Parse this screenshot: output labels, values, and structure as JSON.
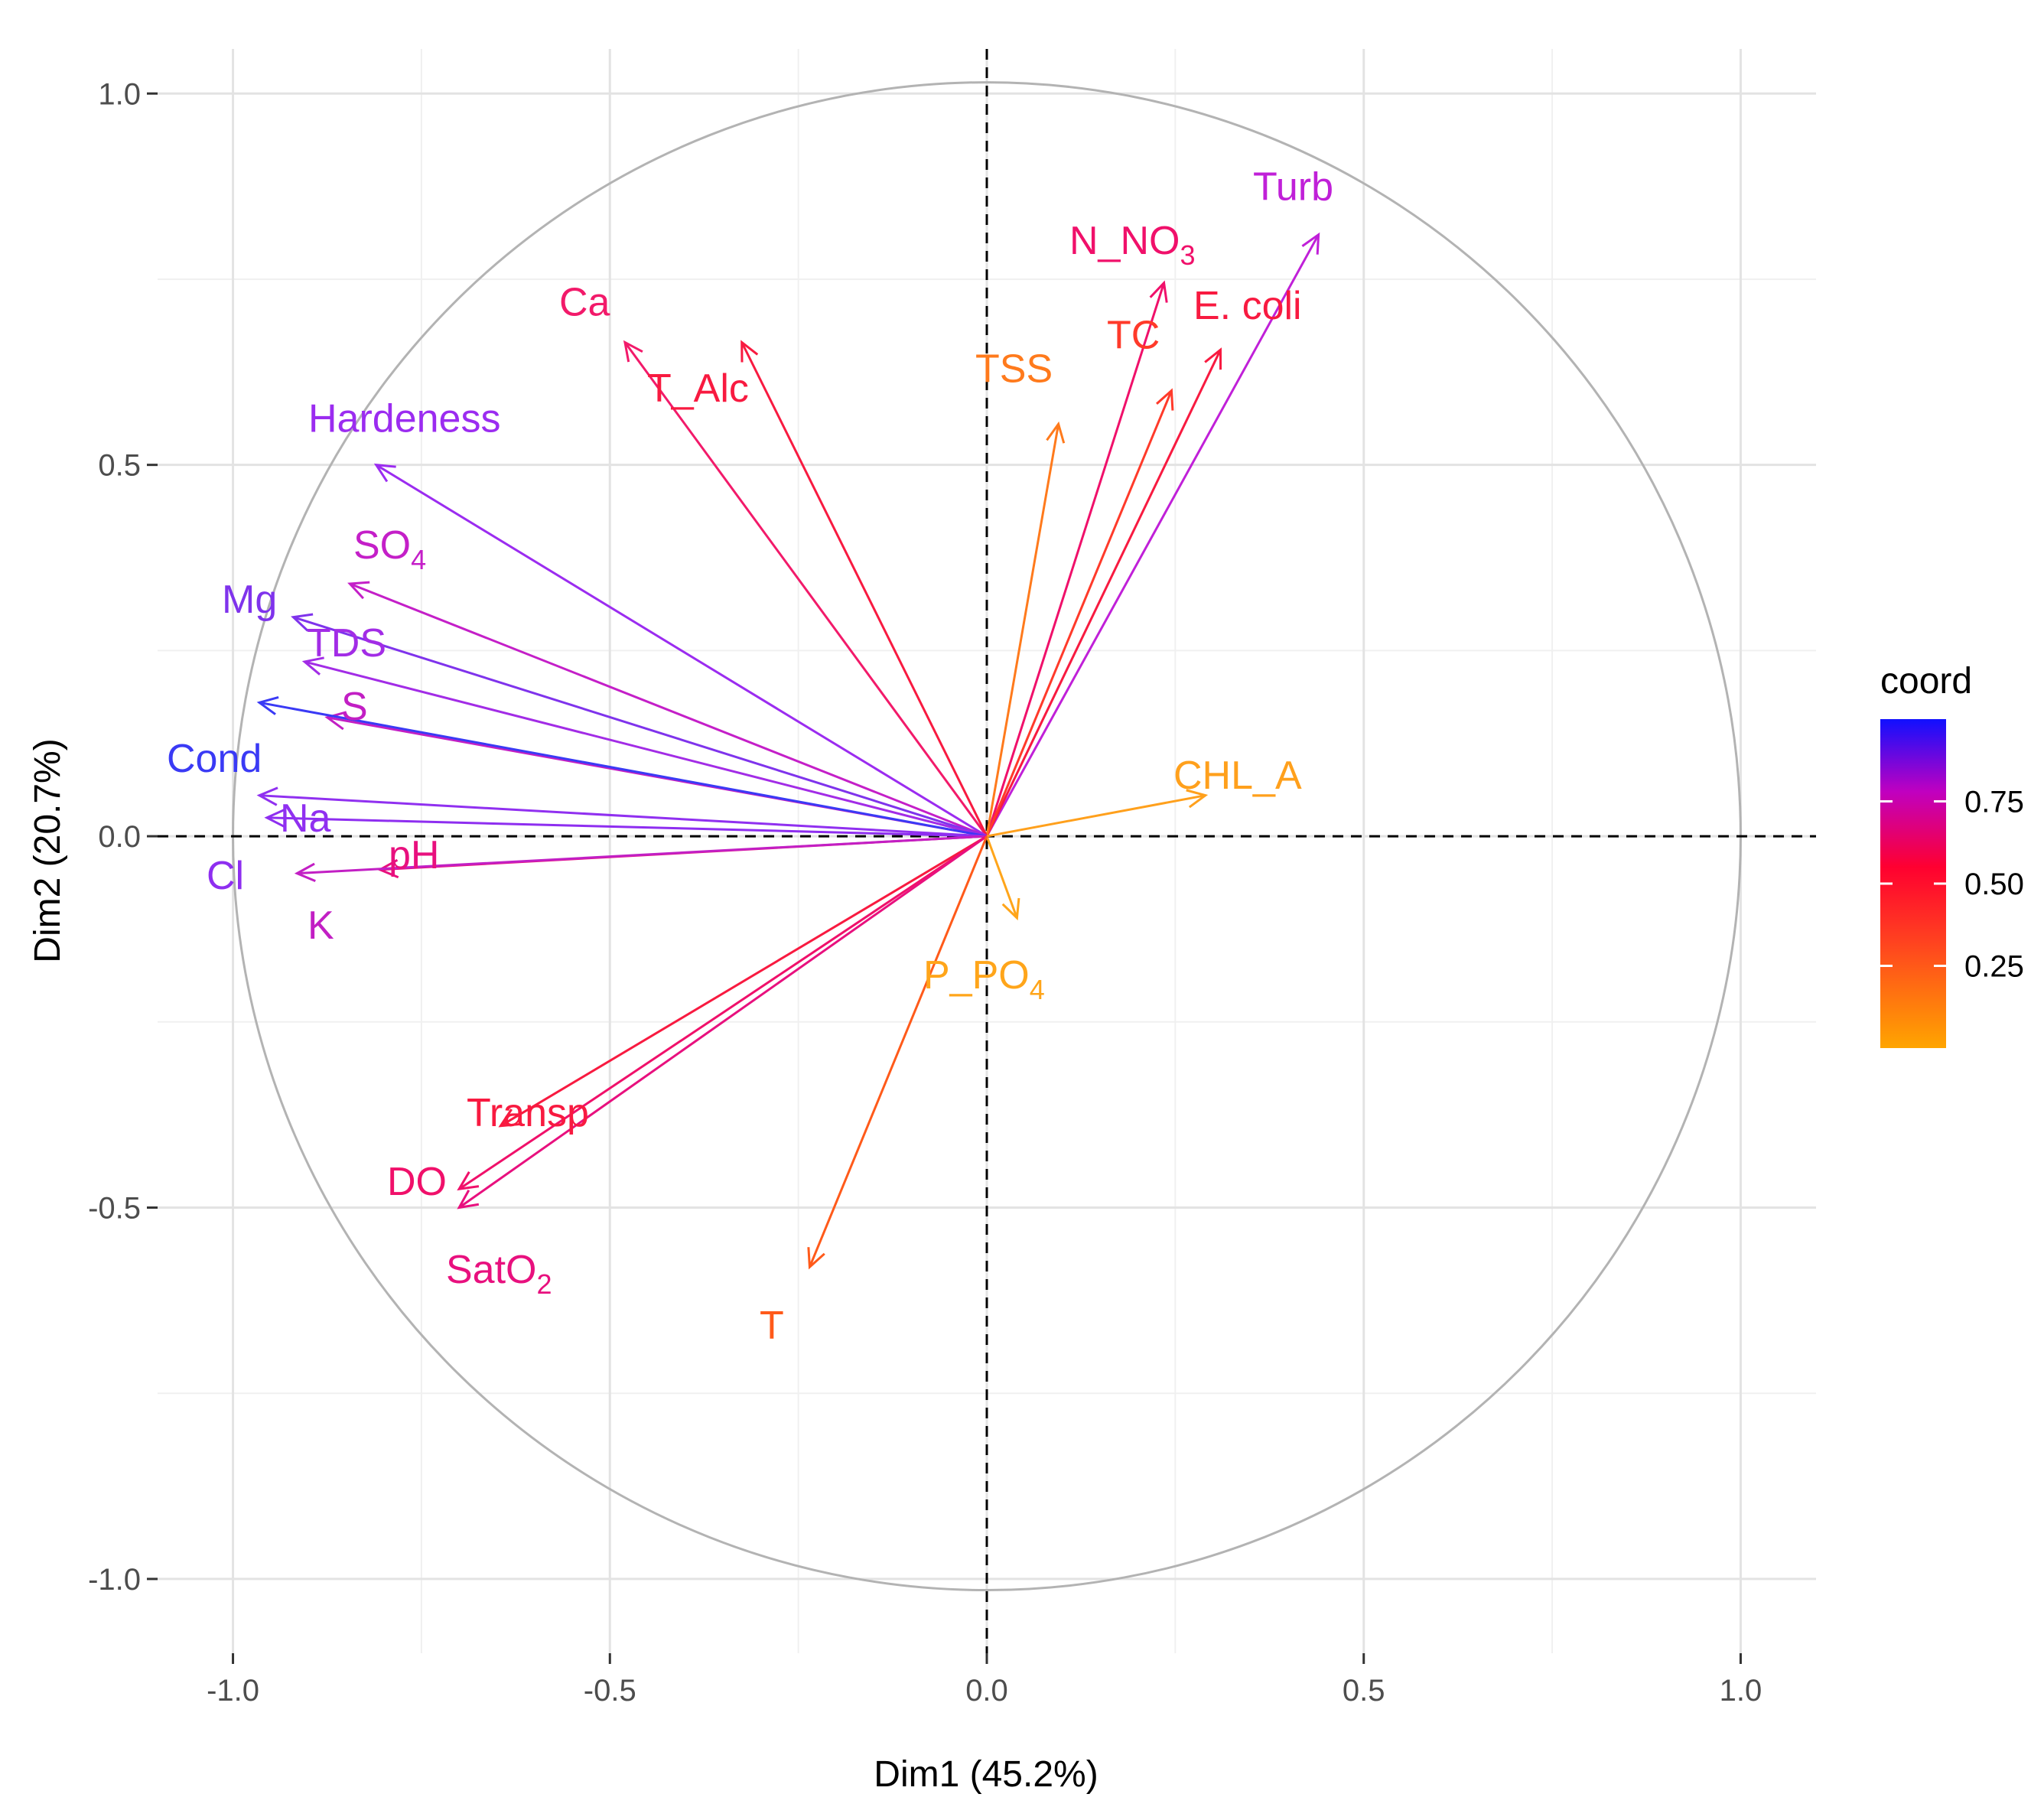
{
  "chart_data": {
    "type": "scatter",
    "subtype": "pca-variable-correlation-circle",
    "title": "",
    "xlabel": "Dim1 (45.2%)",
    "ylabel": "Dim2 (20.7%)",
    "xlim": [
      -1.1,
      1.1
    ],
    "ylim": [
      -1.1,
      1.06
    ],
    "x_ticks": [
      {
        "v": -1.0,
        "label": "-1.0"
      },
      {
        "v": -0.5,
        "label": "-0.5"
      },
      {
        "v": 0.0,
        "label": "0.0"
      },
      {
        "v": 0.5,
        "label": "0.5"
      },
      {
        "v": 1.0,
        "label": "1.0"
      }
    ],
    "y_ticks": [
      {
        "v": 1.0,
        "label": "1.0"
      },
      {
        "v": 0.5,
        "label": "0.5"
      },
      {
        "v": 0.0,
        "label": "0.0"
      },
      {
        "v": -0.5,
        "label": "-0.5"
      },
      {
        "v": -1.0,
        "label": "-1.0"
      }
    ],
    "grid": true,
    "unit_circle": true,
    "reference_lines": [
      0,
      0
    ],
    "legend": {
      "title": "coord",
      "placement": "right",
      "gradient": [
        "#FFA500",
        "#FF0000",
        "#C000C0",
        "#0000FF"
      ],
      "range": [
        0.0,
        1.0
      ],
      "ticks": [
        {
          "v": 0.25,
          "label": "0.25"
        },
        {
          "v": 0.5,
          "label": "0.50"
        },
        {
          "v": 0.75,
          "label": "0.75"
        }
      ]
    },
    "variables": [
      {
        "name": "Turb",
        "sub": "",
        "x": 0.44,
        "y": 0.81,
        "color": "#C020D8"
      },
      {
        "name": "N_NO",
        "sub": "3",
        "x": 0.235,
        "y": 0.745,
        "color": "#F0106A"
      },
      {
        "name": "E. coli",
        "sub": "",
        "x": 0.31,
        "y": 0.655,
        "color": "#F81A40"
      },
      {
        "name": "TC",
        "sub": "",
        "x": 0.245,
        "y": 0.6,
        "color": "#FF3A2A"
      },
      {
        "name": "TSS",
        "sub": "",
        "x": 0.095,
        "y": 0.555,
        "color": "#FF7A1C"
      },
      {
        "name": "Ca",
        "sub": "",
        "x": -0.48,
        "y": 0.665,
        "color": "#F21A6A"
      },
      {
        "name": "T_Alc",
        "sub": "",
        "x": -0.325,
        "y": 0.665,
        "color": "#F81A40"
      },
      {
        "name": "Hardeness",
        "sub": "",
        "x": -0.81,
        "y": 0.5,
        "color": "#9B2CF0"
      },
      {
        "name": "SO",
        "sub": "4",
        "x": -0.845,
        "y": 0.34,
        "color": "#C41FC8"
      },
      {
        "name": "Mg",
        "sub": "",
        "x": -0.92,
        "y": 0.295,
        "color": "#7F33EC"
      },
      {
        "name": "TDS",
        "sub": "",
        "x": -0.905,
        "y": 0.235,
        "color": "#A22CE6"
      },
      {
        "name": "S",
        "sub": "",
        "x": -0.875,
        "y": 0.16,
        "color": "#C21FC4"
      },
      {
        "name": "Cond",
        "sub": "",
        "x": -0.965,
        "y": 0.18,
        "color": "#3A3AF5"
      },
      {
        "name": "Na",
        "sub": "",
        "x": -0.965,
        "y": 0.055,
        "color": "#9030F0"
      },
      {
        "name": "Cl",
        "sub": "",
        "x": -0.955,
        "y": 0.025,
        "color": "#8E2EF0"
      },
      {
        "name": "pH",
        "sub": "",
        "x": -0.805,
        "y": -0.045,
        "color": "#E8107E"
      },
      {
        "name": "K",
        "sub": "",
        "x": -0.915,
        "y": -0.05,
        "color": "#C21FC4"
      },
      {
        "name": "CHL_A",
        "sub": "",
        "x": 0.29,
        "y": 0.055,
        "color": "#FFA01C"
      },
      {
        "name": "P_PO",
        "sub": "4",
        "x": 0.04,
        "y": -0.11,
        "color": "#FFA51A"
      },
      {
        "name": "Transp",
        "sub": "",
        "x": -0.645,
        "y": -0.39,
        "color": "#F81A40"
      },
      {
        "name": "DO",
        "sub": "",
        "x": -0.7,
        "y": -0.475,
        "color": "#F0106A"
      },
      {
        "name": "SatO",
        "sub": "2",
        "x": -0.7,
        "y": -0.5,
        "color": "#E8107E"
      },
      {
        "name": "T",
        "sub": "",
        "x": -0.235,
        "y": -0.58,
        "color": "#FF5A1A"
      }
    ]
  }
}
